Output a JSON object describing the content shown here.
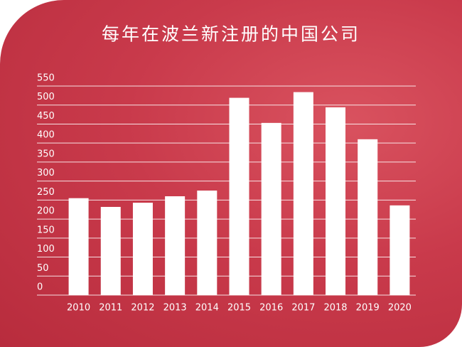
{
  "chart_data": {
    "type": "bar",
    "title": "每年在波兰新注册的中国公司",
    "categories": [
      "2010",
      "2011",
      "2012",
      "2013",
      "2014",
      "2015",
      "2016",
      "2017",
      "2018",
      "2019",
      "2020"
    ],
    "values": [
      255,
      232,
      243,
      260,
      275,
      519,
      453,
      534,
      494,
      410,
      236
    ],
    "color": "#ffffff",
    "ylim": [
      0,
      550
    ],
    "yticks": [
      0,
      50,
      100,
      150,
      200,
      250,
      300,
      350,
      400,
      450,
      500,
      550
    ],
    "grid": true
  }
}
